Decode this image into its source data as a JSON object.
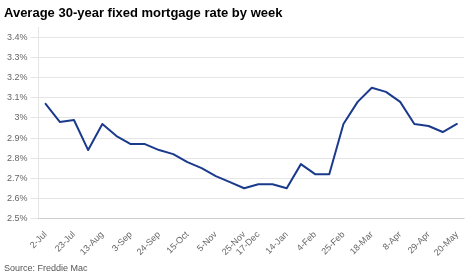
{
  "chart_data": {
    "type": "line",
    "title": "Average 30-year fixed mortgage rate by week",
    "annotations": [
      "Source: Freddie Mac"
    ],
    "categories": [
      "2-Jul",
      null,
      "23-Jul",
      null,
      "13-Aug",
      null,
      "3-Sep",
      null,
      "24-Sep",
      null,
      "15-Oct",
      null,
      "5-Nov",
      null,
      "25-Nov",
      "17-Dec",
      null,
      "14-Jan",
      null,
      "4-Feb",
      null,
      "25-Feb",
      null,
      "18-Mar",
      null,
      "8-Apr",
      null,
      "29-Apr",
      null,
      "20-May"
    ],
    "values": [
      3.07,
      2.98,
      2.99,
      2.84,
      2.97,
      2.91,
      2.87,
      2.87,
      2.84,
      2.82,
      2.78,
      2.75,
      2.71,
      2.68,
      2.65,
      2.67,
      2.67,
      2.65,
      2.77,
      2.72,
      2.72,
      2.97,
      3.08,
      3.15,
      3.13,
      3.08,
      2.97,
      2.96,
      2.93,
      2.97
    ],
    "color": "#1a3a8c",
    "ylim": [
      2.5,
      3.45
    ],
    "yticks": [
      {
        "value": 2.5,
        "label": "2.5%"
      },
      {
        "value": 2.6,
        "label": "2.6%"
      },
      {
        "value": 2.7,
        "label": "2.7%"
      },
      {
        "value": 2.8,
        "label": "2.8%"
      },
      {
        "value": 2.9,
        "label": "2.9%"
      },
      {
        "value": 3.0,
        "label": "3%"
      },
      {
        "value": 3.1,
        "label": "3.1%"
      },
      {
        "value": 3.2,
        "label": "3.2%"
      },
      {
        "value": 3.3,
        "label": "3.3%"
      },
      {
        "value": 3.4,
        "label": "3.4%"
      }
    ],
    "grid": "y"
  }
}
